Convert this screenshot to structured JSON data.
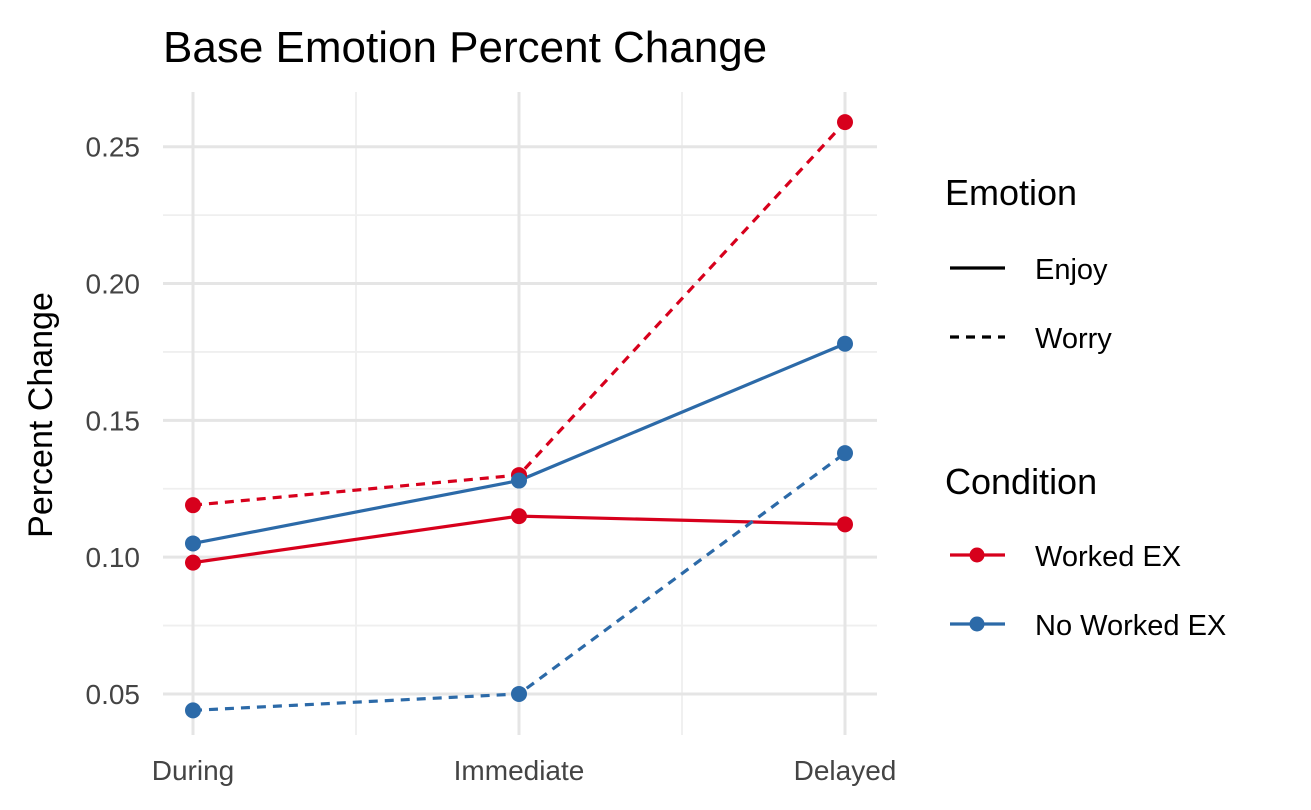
{
  "chart_data": {
    "type": "line",
    "title": "Base Emotion Percent Change",
    "xlabel": "",
    "ylabel": "Percent Change",
    "categories": [
      "During",
      "Immediate",
      "Delayed"
    ],
    "ylim": [
      0.035,
      0.27
    ],
    "yticks": [
      0.05,
      0.1,
      0.15,
      0.2,
      0.25
    ],
    "ytick_labels": [
      "0.05",
      "0.10",
      "0.15",
      "0.20",
      "0.25"
    ],
    "grid": true,
    "legend_position": "right",
    "legends": {
      "emotion": {
        "title": "Emotion",
        "items": [
          {
            "label": "Enjoy",
            "linetype": "solid"
          },
          {
            "label": "Worry",
            "linetype": "dashed"
          }
        ]
      },
      "condition": {
        "title": "Condition",
        "items": [
          {
            "label": "Worked EX",
            "color": "#d7001c"
          },
          {
            "label": "No Worked EX",
            "color": "#2c6aa8"
          }
        ]
      }
    },
    "series": [
      {
        "emotion": "Enjoy",
        "condition": "Worked EX",
        "linetype": "solid",
        "color": "#d7001c",
        "values": [
          0.098,
          0.115,
          0.112
        ]
      },
      {
        "emotion": "Worry",
        "condition": "Worked EX",
        "linetype": "dashed",
        "color": "#d7001c",
        "values": [
          0.119,
          0.13,
          0.259
        ]
      },
      {
        "emotion": "Enjoy",
        "condition": "No Worked EX",
        "linetype": "solid",
        "color": "#2c6aa8",
        "values": [
          0.105,
          0.128,
          0.178
        ]
      },
      {
        "emotion": "Worry",
        "condition": "No Worked EX",
        "linetype": "dashed",
        "color": "#2c6aa8",
        "values": [
          0.044,
          0.05,
          0.138
        ]
      }
    ]
  }
}
